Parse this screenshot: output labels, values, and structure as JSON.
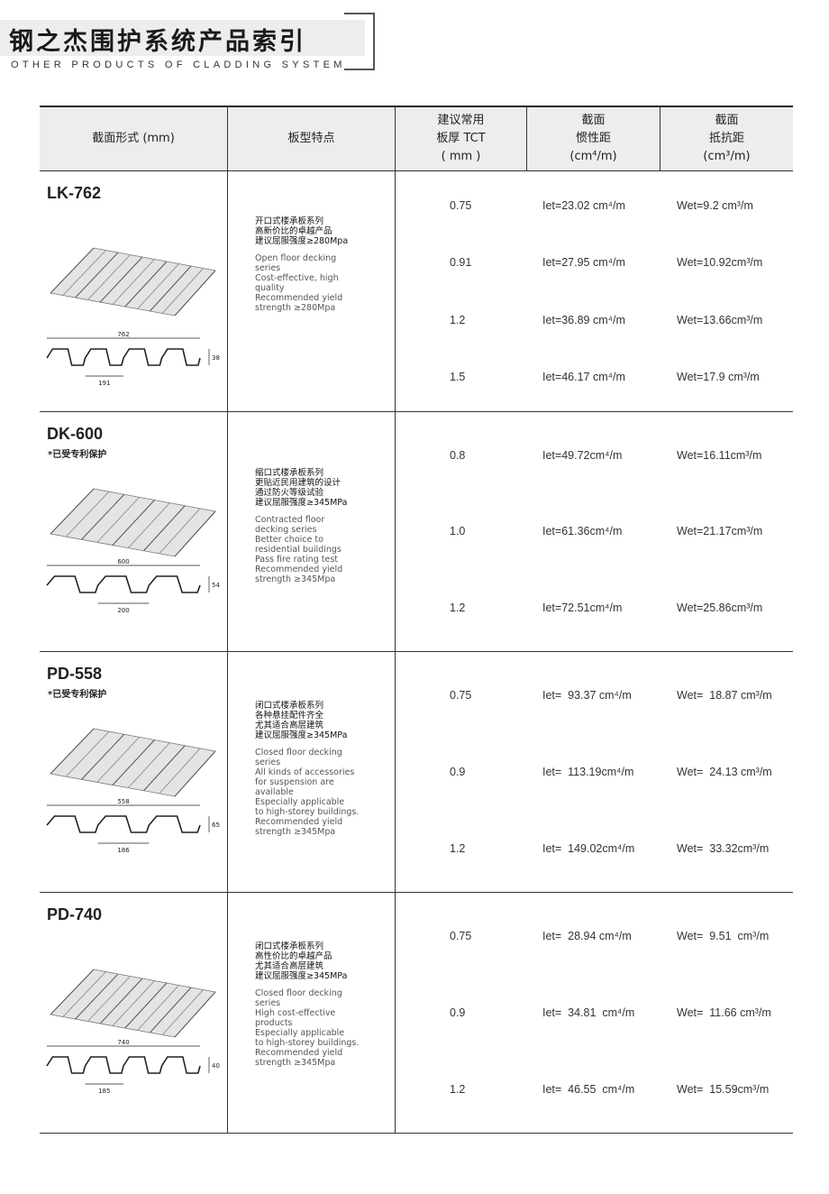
{
  "header": {
    "title": "钢之杰围护系统产品索引",
    "subtitle": "OTHER PRODUCTS OF CLADDING SYSTEM"
  },
  "table": {
    "columns": [
      "截面形式 (mm)",
      "板型特点",
      "建议常用\n板厚 TCT\n( mm )",
      "截面\n惯性距\n(cm⁴/m)",
      "截面\n抵抗距\n(cm³/m)"
    ],
    "rows": [
      {
        "model": "LK-762",
        "patent": "",
        "dims": [
          "762",
          "191",
          "38"
        ],
        "cn": [
          "开口式楼承板系列",
          "高新价比的卓越产品",
          "建议屈服强度≥280Mpa"
        ],
        "en": [
          "Open floor decking",
          "series",
          "Cost-effective, high",
          "quality",
          "Recommended yield",
          "strength ≥280Mpa"
        ],
        "values": [
          [
            "0.75",
            "Iet=23.02 cm⁴/m",
            "Wet=9.2 cm³/m"
          ],
          [
            "0.91",
            "Iet=27.95 cm⁴/m",
            "Wet=10.92cm³/m"
          ],
          [
            "1.2",
            "Iet=36.89 cm⁴/m",
            "Wet=13.66cm³/m"
          ],
          [
            "1.5",
            "Iet=46.17 cm⁴/m",
            "Wet=17.9 cm³/m"
          ]
        ]
      },
      {
        "model": "DK-600",
        "patent": "*已受专利保护",
        "dims": [
          "600",
          "200",
          "54"
        ],
        "cn": [
          "缩口式楼承板系列",
          "更贴近民用建筑的设计",
          "通过防火等级试验",
          "建议屈服强度≥345MPa"
        ],
        "en": [
          "Contracted floor",
          "decking series",
          "Better choice to",
          "residential buildings",
          "Pass fire rating test",
          "Recommended yield",
          "strength ≥345Mpa"
        ],
        "values": [
          [
            "0.8",
            "Iet=49.72cm⁴/m",
            "Wet=16.11cm³/m"
          ],
          [
            "1.0",
            "Iet=61.36cm⁴/m",
            "Wet=21.17cm³/m"
          ],
          [
            "1.2",
            "Iet=72.51cm⁴/m",
            "Wet=25.86cm³/m"
          ]
        ]
      },
      {
        "model": "PD-558",
        "patent": "*已受专利保护",
        "dims": [
          "558",
          "186",
          "65"
        ],
        "cn": [
          "闭口式楼承板系列",
          "各种悬挂配件齐全",
          "尤其适合高层建筑",
          "建议屈服强度≥345MPa"
        ],
        "en": [
          "Closed floor decking",
          "series",
          "All kinds of accessories",
          "for suspension are",
          "available",
          "Especially applicable",
          "to high-storey buildings.",
          "Recommended yield",
          "strength ≥345Mpa"
        ],
        "values": [
          [
            "0.75",
            "Iet=  93.37 cm⁴/m",
            "Wet=  18.87 cm³/m"
          ],
          [
            "0.9",
            "Iet=  113.19cm⁴/m",
            "Wet=  24.13 cm³/m"
          ],
          [
            "1.2",
            "Iet=  149.02cm⁴/m",
            "Wet=  33.32cm³/m"
          ]
        ]
      },
      {
        "model": "PD-740",
        "patent": "",
        "dims": [
          "740",
          "185",
          "40"
        ],
        "cn": [
          "闭口式楼承板系列",
          "高性价比的卓越产品",
          "尤其适合高层建筑",
          "建议屈服强度≥345MPa"
        ],
        "en": [
          "Closed floor decking",
          "series",
          "High cost-effective",
          "products",
          "Especially applicable",
          "to high-storey buildings.",
          "Recommended yield",
          "strength ≥345Mpa"
        ],
        "values": [
          [
            "0.75",
            "Iet=  28.94 cm⁴/m",
            "Wet=  9.51  cm³/m"
          ],
          [
            "0.9",
            "Iet=  34.81  cm⁴/m",
            "Wet=  11.66 cm³/m"
          ],
          [
            "1.2",
            "Iet=  46.55  cm⁴/m",
            "Wet=  15.59cm³/m"
          ]
        ]
      }
    ]
  },
  "colors": {
    "header_bg": "#ededed",
    "rule": "#333333"
  }
}
